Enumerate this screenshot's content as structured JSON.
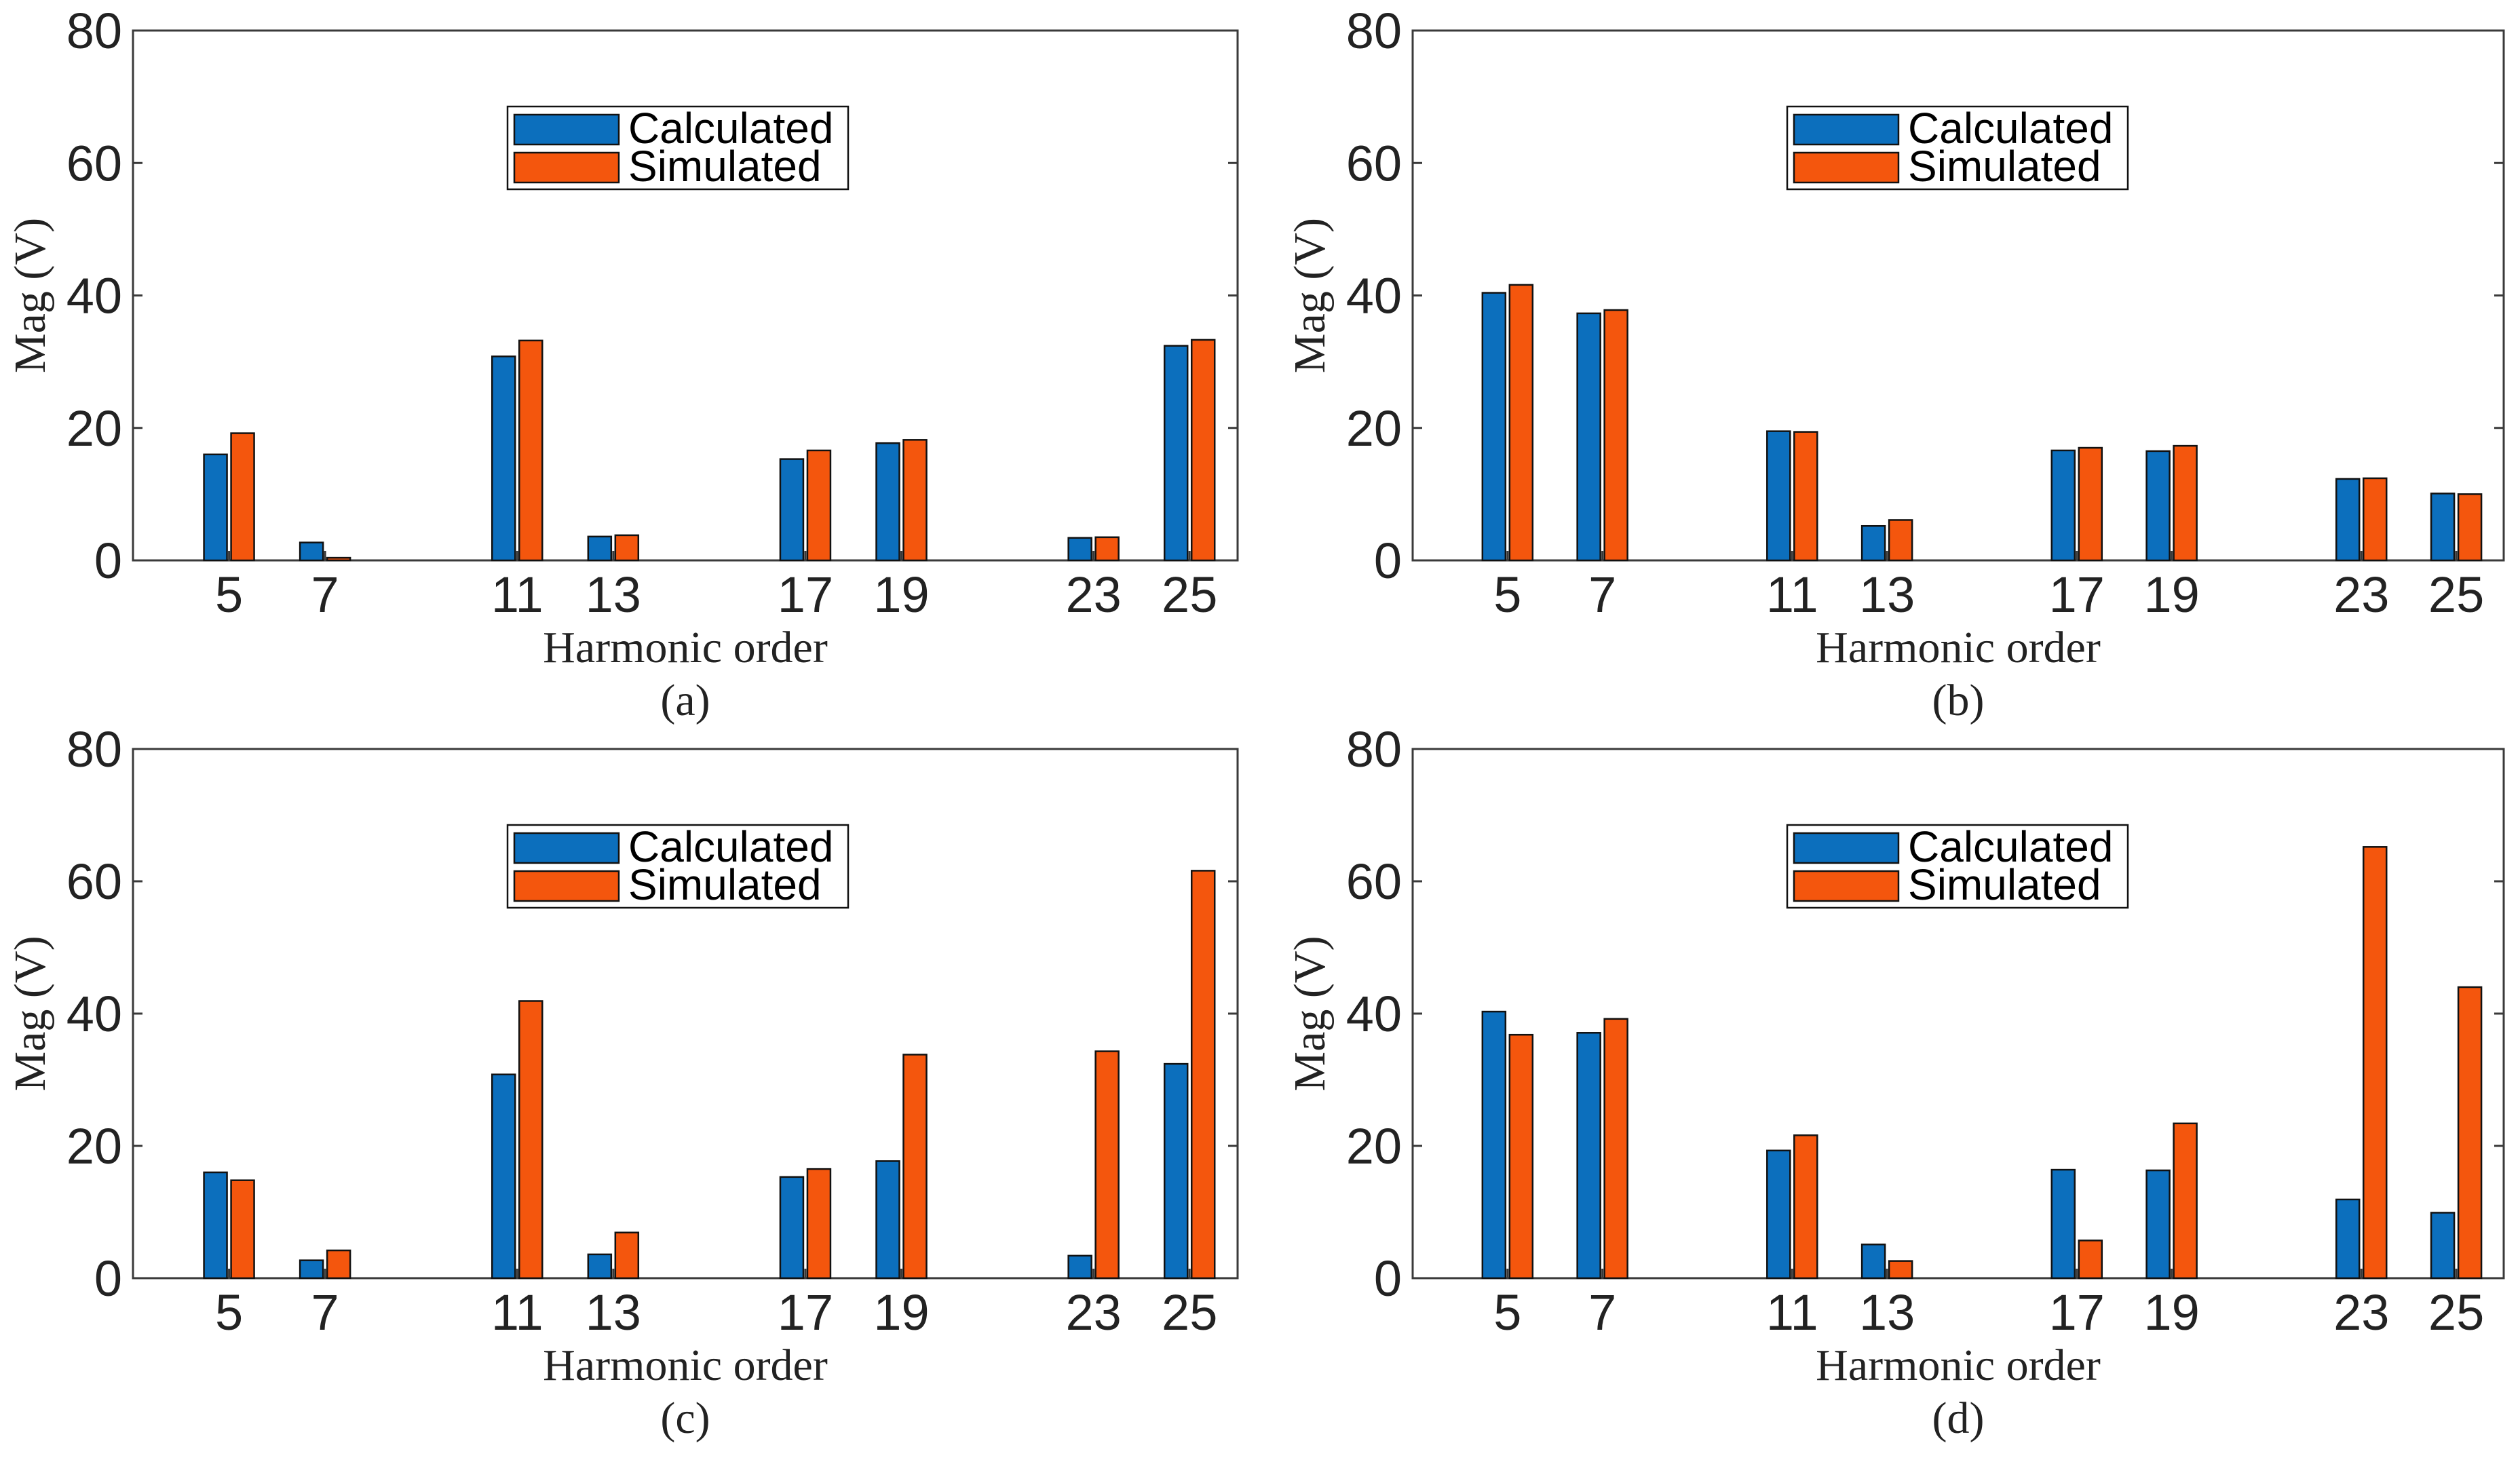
{
  "colors": {
    "calculated": "#0c6fbd",
    "simulated": "#f4560d",
    "axis": "#3a3a3a",
    "text": "#222222"
  },
  "chart_data": [
    {
      "type": "bar",
      "caption": "(a)",
      "xlabel": "Harmonic order",
      "ylabel": "Mag (V)",
      "ylim": [
        0,
        80
      ],
      "yticks": [
        "0",
        "20",
        "40",
        "60",
        "80"
      ],
      "categories": [
        "5",
        "7",
        "11",
        "13",
        "17",
        "19",
        "23",
        "25"
      ],
      "legend": "top-center",
      "series": [
        {
          "name": "Calculated",
          "values": [
            16,
            2.7,
            30.8,
            3.6,
            15.3,
            17.7,
            3.4,
            32.4
          ]
        },
        {
          "name": "Simulated",
          "values": [
            19.2,
            0.4,
            33.2,
            3.8,
            16.6,
            18.2,
            3.5,
            33.3
          ]
        }
      ]
    },
    {
      "type": "bar",
      "caption": "(b)",
      "xlabel": "Harmonic order",
      "ylabel": "Mag (V)",
      "ylim": [
        0,
        80
      ],
      "yticks": [
        "0",
        "20",
        "40",
        "60",
        "80"
      ],
      "categories": [
        "5",
        "7",
        "11",
        "13",
        "17",
        "19",
        "23",
        "25"
      ],
      "legend": "top-center",
      "series": [
        {
          "name": "Calculated",
          "values": [
            40.4,
            37.3,
            19.5,
            5.2,
            16.6,
            16.5,
            12.3,
            10.1
          ]
        },
        {
          "name": "Simulated",
          "values": [
            41.6,
            37.8,
            19.4,
            6.1,
            17.0,
            17.3,
            12.4,
            10.0
          ]
        }
      ]
    },
    {
      "type": "bar",
      "caption": "(c)",
      "xlabel": "Harmonic order",
      "ylabel": "Mag (V)",
      "ylim": [
        0,
        80
      ],
      "yticks": [
        "0",
        "20",
        "40",
        "60",
        "80"
      ],
      "categories": [
        "5",
        "7",
        "11",
        "13",
        "17",
        "19",
        "23",
        "25"
      ],
      "legend": "top-center",
      "series": [
        {
          "name": "Calculated",
          "values": [
            16,
            2.7,
            30.8,
            3.6,
            15.3,
            17.7,
            3.4,
            32.4
          ]
        },
        {
          "name": "Simulated",
          "values": [
            14.8,
            4.2,
            41.9,
            6.9,
            16.5,
            33.8,
            34.3,
            61.6
          ]
        }
      ]
    },
    {
      "type": "bar",
      "caption": "(d)",
      "xlabel": "Harmonic order",
      "ylabel": "Mag (V)",
      "ylim": [
        0,
        80
      ],
      "yticks": [
        "0",
        "20",
        "40",
        "60",
        "80"
      ],
      "categories": [
        "5",
        "7",
        "11",
        "13",
        "17",
        "19",
        "23",
        "25"
      ],
      "legend": "top-center",
      "series": [
        {
          "name": "Calculated",
          "values": [
            40.3,
            37.1,
            19.3,
            5.1,
            16.4,
            16.3,
            11.9,
            9.9
          ]
        },
        {
          "name": "Simulated",
          "values": [
            36.8,
            39.2,
            21.6,
            2.6,
            5.7,
            23.4,
            65.2,
            44.0
          ]
        }
      ]
    }
  ]
}
